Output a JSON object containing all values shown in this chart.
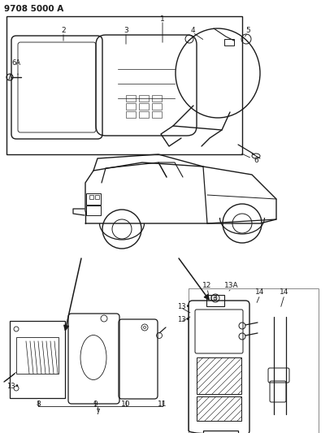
{
  "title": "9708 5000 A",
  "bg": "#ffffff",
  "lc": "#1a1a1a",
  "fig_w": 4.11,
  "fig_h": 5.33,
  "dpi": 100
}
